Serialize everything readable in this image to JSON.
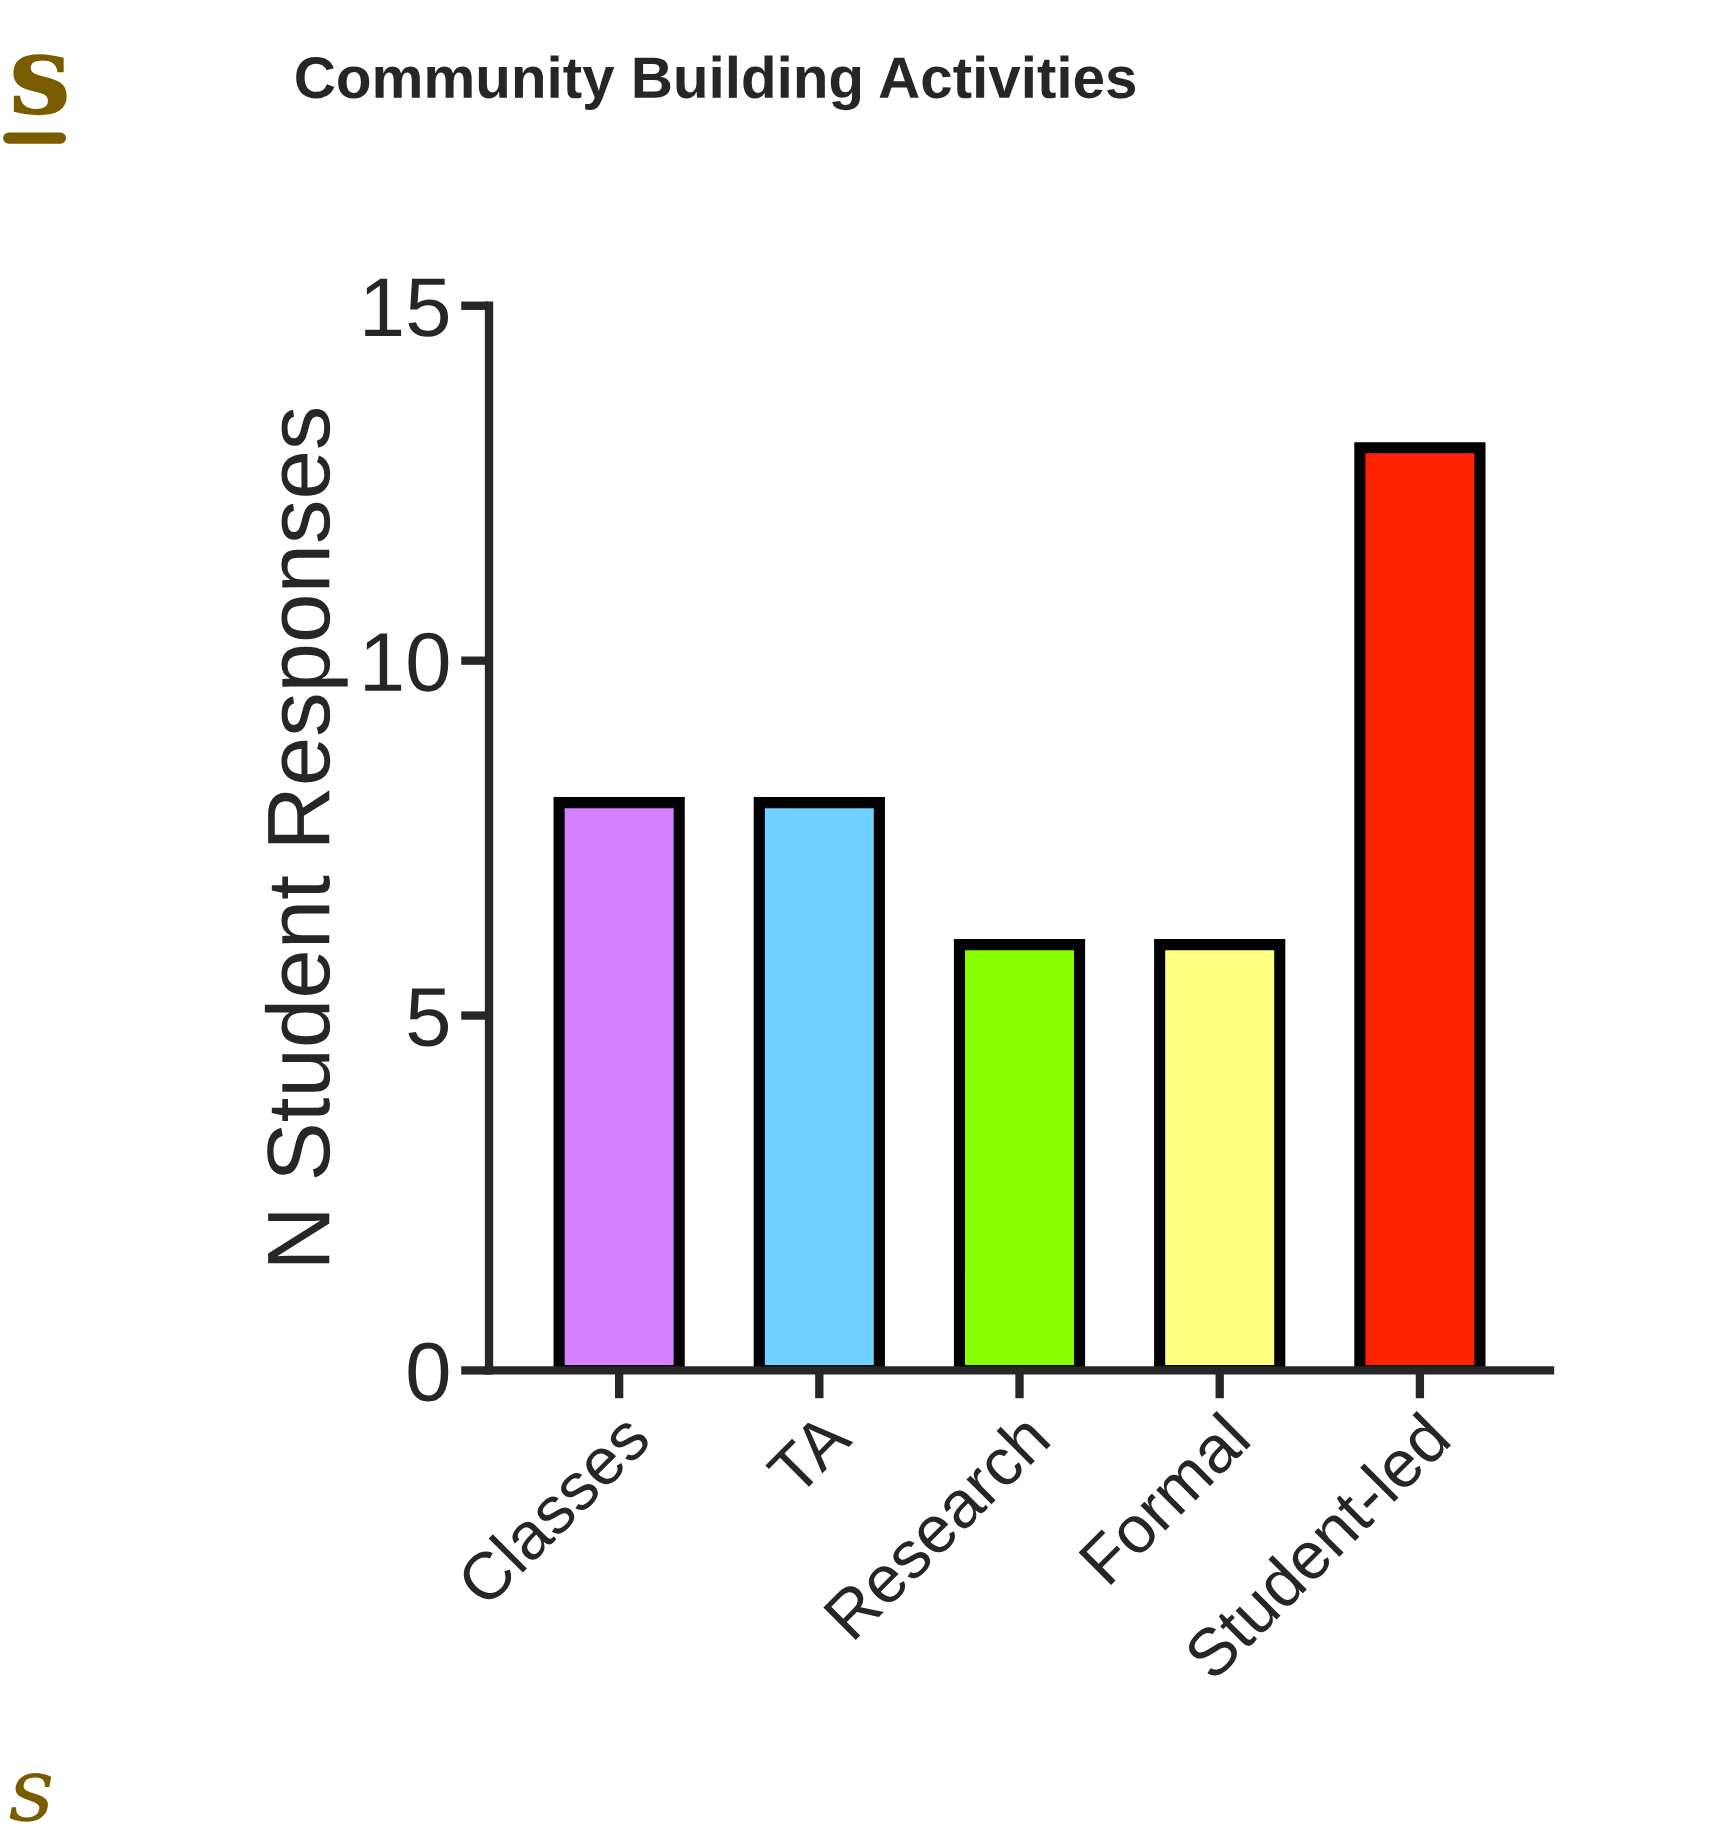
{
  "chart_data": {
    "type": "bar",
    "title": "Community Building Activities",
    "ylabel": "N Student Responses",
    "categories": [
      "Classes",
      "TA",
      "Research",
      "Formal",
      "Student-led"
    ],
    "values": [
      8,
      8,
      6,
      6,
      13
    ],
    "colors": [
      "#d580ff",
      "#70d0ff",
      "#88ff00",
      "#ffff80",
      "#ff2200"
    ],
    "ylim": [
      0,
      15
    ],
    "yticks": [
      0,
      5,
      10,
      15
    ],
    "grid": false,
    "annotations": [
      "s",
      "s"
    ]
  }
}
